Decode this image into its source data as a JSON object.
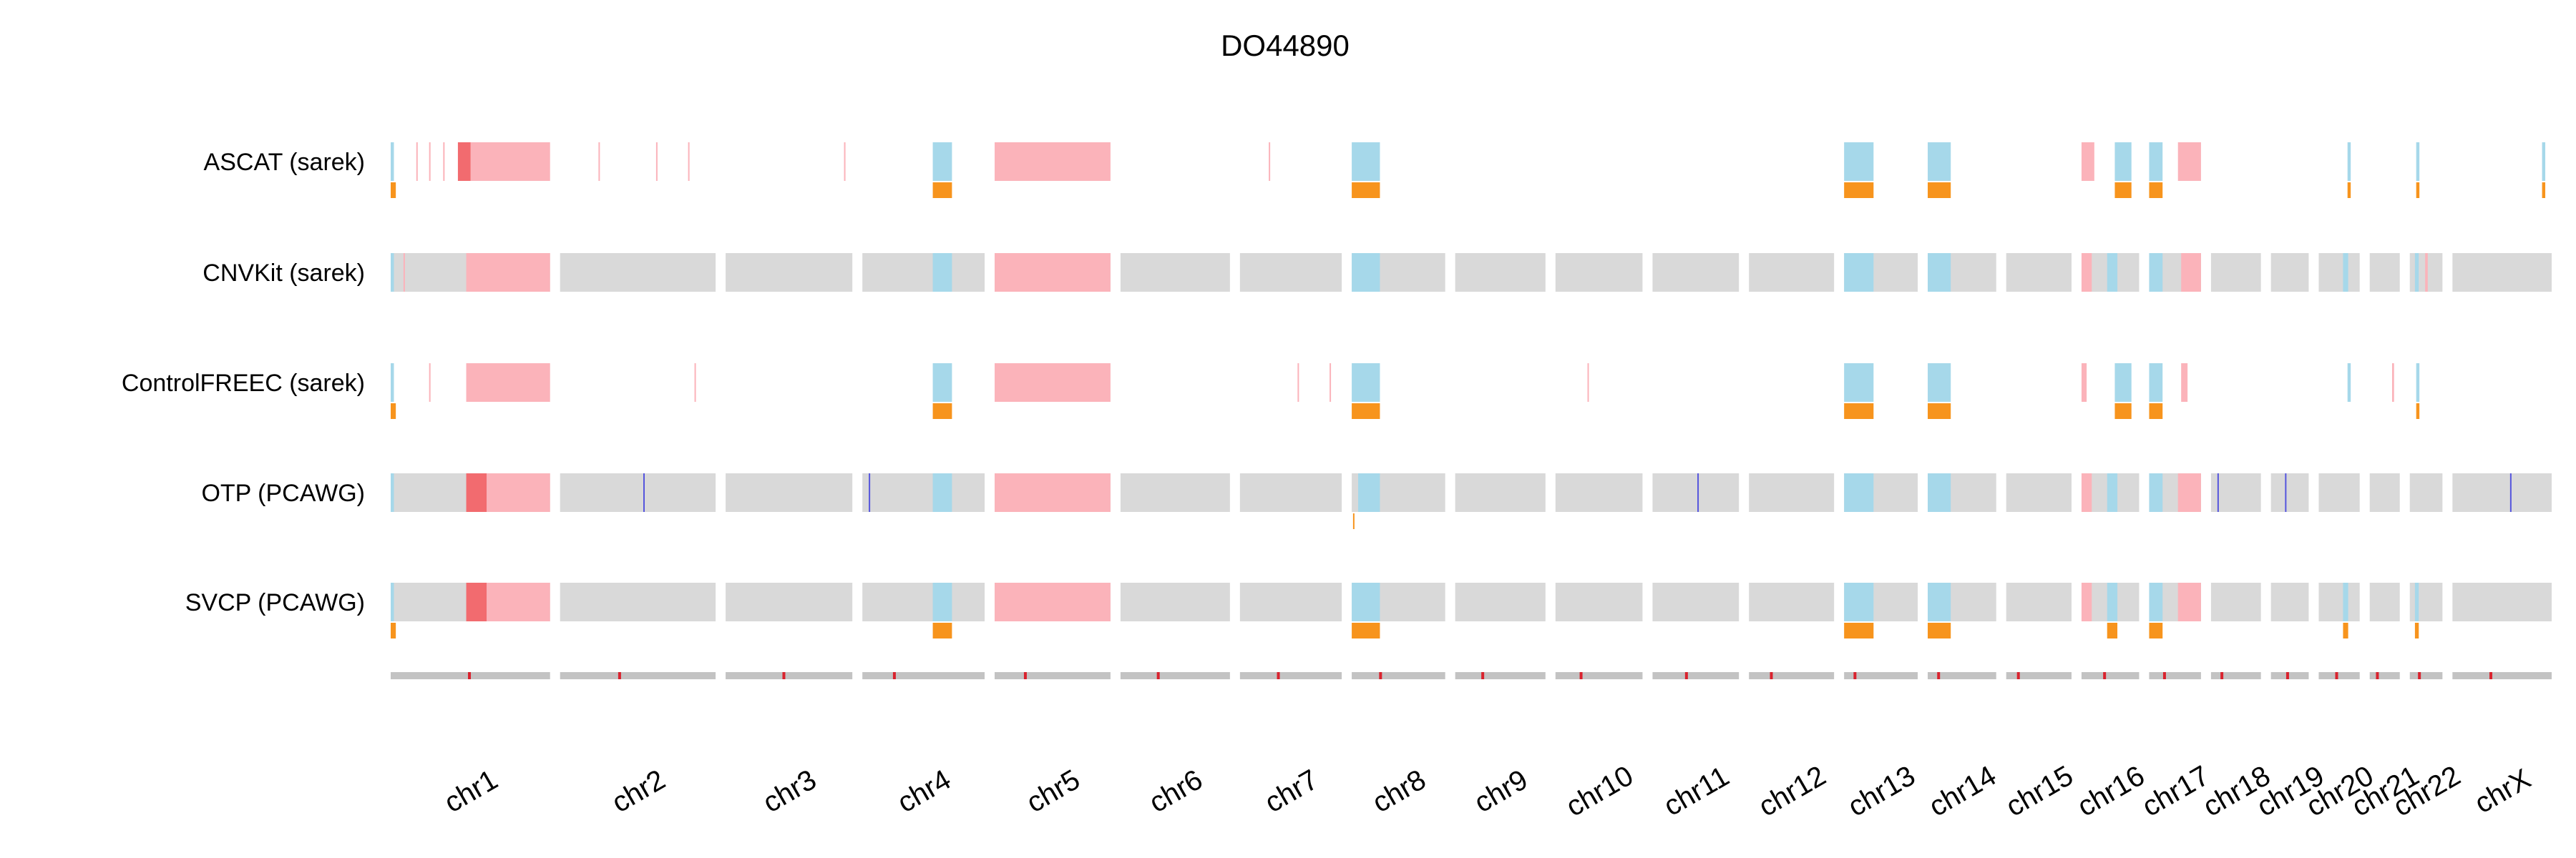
{
  "chart_data": {
    "type": "heatmap",
    "title": "DO44890",
    "tracks": [
      "ASCAT (sarek)",
      "CNVKit (sarek)",
      "ControlFREEC (sarek)",
      "OTP (PCAWG)",
      "SVCP (PCAWG)"
    ],
    "chromosomes": [
      {
        "name": "chr1",
        "length": 249
      },
      {
        "name": "chr2",
        "length": 243
      },
      {
        "name": "chr3",
        "length": 198
      },
      {
        "name": "chr4",
        "length": 191
      },
      {
        "name": "chr5",
        "length": 181
      },
      {
        "name": "chr6",
        "length": 171
      },
      {
        "name": "chr7",
        "length": 159
      },
      {
        "name": "chr8",
        "length": 146
      },
      {
        "name": "chr9",
        "length": 141
      },
      {
        "name": "chr10",
        "length": 136
      },
      {
        "name": "chr11",
        "length": 135
      },
      {
        "name": "chr12",
        "length": 133
      },
      {
        "name": "chr13",
        "length": 115
      },
      {
        "name": "chr14",
        "length": 107
      },
      {
        "name": "chr15",
        "length": 102
      },
      {
        "name": "chr16",
        "length": 90
      },
      {
        "name": "chr17",
        "length": 81
      },
      {
        "name": "chr18",
        "length": 78
      },
      {
        "name": "chr19",
        "length": 59
      },
      {
        "name": "chr20",
        "length": 64
      },
      {
        "name": "chr21",
        "length": 47
      },
      {
        "name": "chr22",
        "length": 51
      },
      {
        "name": "chrX",
        "length": 155
      }
    ],
    "legend_semantics": {
      "pink": "copy-number gain",
      "red": "high-level gain",
      "light-blue": "copy-number loss",
      "orange": "loss of heterozygosity",
      "grey": "neutral",
      "blue": "segment marker"
    },
    "colors": {
      "neutral": "#d9d9d9",
      "gain": "#fbb3ba",
      "high_gain": "#f26b6f",
      "loss": "#a6d8ea",
      "loh": "#f7941d",
      "marker_blue": "#5555dd",
      "ideogram": "#c3c3c3",
      "centromere": "#d9232e"
    },
    "segments": {
      "ASCAT (sarek)": {
        "bg": false,
        "calls": [
          [
            "chr1",
            0,
            5,
            "loss"
          ],
          [
            "chr1",
            105,
            125,
            "high_gain"
          ],
          [
            "chr1",
            125,
            249,
            "gain"
          ],
          [
            "chr1",
            40,
            41,
            "gain"
          ],
          [
            "chr1",
            60,
            61,
            "gain"
          ],
          [
            "chr1",
            82,
            83,
            "gain"
          ],
          [
            "chr2",
            60,
            61,
            "gain"
          ],
          [
            "chr2",
            150,
            151,
            "gain"
          ],
          [
            "chr2",
            200,
            201,
            "gain"
          ],
          [
            "chr3",
            185,
            186,
            "gain"
          ],
          [
            "chr4",
            110,
            140,
            "loss"
          ],
          [
            "chr5",
            0,
            181,
            "gain"
          ],
          [
            "chr7",
            45,
            46,
            "gain"
          ],
          [
            "chr8",
            0,
            44,
            "loss"
          ],
          [
            "chr13",
            0,
            46,
            "loss"
          ],
          [
            "chr14",
            0,
            36,
            "loss"
          ],
          [
            "chr16",
            0,
            20,
            "gain"
          ],
          [
            "chr16",
            52,
            78,
            "loss"
          ],
          [
            "chr17",
            0,
            21,
            "loss"
          ],
          [
            "chr17",
            45,
            81,
            "gain"
          ],
          [
            "chr20",
            45,
            50,
            "loss"
          ],
          [
            "chr22",
            10,
            15,
            "loss"
          ],
          [
            "chrX",
            140,
            145,
            "loss"
          ]
        ],
        "loh": [
          [
            "chr1",
            0,
            8
          ],
          [
            "chr4",
            110,
            140
          ],
          [
            "chr8",
            0,
            44
          ],
          [
            "chr13",
            0,
            46
          ],
          [
            "chr14",
            0,
            36
          ],
          [
            "chr16",
            52,
            78
          ],
          [
            "chr17",
            0,
            21
          ],
          [
            "chr20",
            45,
            50
          ],
          [
            "chr22",
            10,
            15
          ],
          [
            "chrX",
            140,
            145
          ]
        ]
      },
      "CNVKit (sarek)": {
        "bg": true,
        "calls": [
          [
            "chr1",
            0,
            5,
            "loss"
          ],
          [
            "chr1",
            20,
            21,
            "gain"
          ],
          [
            "chr1",
            118,
            249,
            "gain"
          ],
          [
            "chr4",
            110,
            140,
            "loss"
          ],
          [
            "chr5",
            0,
            181,
            "gain"
          ],
          [
            "chr8",
            0,
            44,
            "loss"
          ],
          [
            "chr13",
            0,
            46,
            "loss"
          ],
          [
            "chr14",
            0,
            36,
            "loss"
          ],
          [
            "chr16",
            0,
            16,
            "gain"
          ],
          [
            "chr16",
            40,
            56,
            "loss"
          ],
          [
            "chr17",
            0,
            21,
            "loss"
          ],
          [
            "chr17",
            50,
            81,
            "gain"
          ],
          [
            "chr20",
            38,
            46,
            "loss"
          ],
          [
            "chr22",
            8,
            14,
            "loss"
          ],
          [
            "chr22",
            24,
            28,
            "gain"
          ]
        ],
        "loh": []
      },
      "ControlFREEC (sarek)": {
        "bg": false,
        "calls": [
          [
            "chr1",
            0,
            5,
            "loss"
          ],
          [
            "chr1",
            118,
            249,
            "gain"
          ],
          [
            "chr1",
            60,
            61,
            "gain"
          ],
          [
            "chr2",
            210,
            211,
            "gain"
          ],
          [
            "chr4",
            110,
            140,
            "loss"
          ],
          [
            "chr5",
            0,
            181,
            "gain"
          ],
          [
            "chr7",
            90,
            91,
            "gain"
          ],
          [
            "chr7",
            140,
            141,
            "gain"
          ],
          [
            "chr8",
            0,
            44,
            "loss"
          ],
          [
            "chr10",
            50,
            51,
            "gain"
          ],
          [
            "chr13",
            0,
            46,
            "loss"
          ],
          [
            "chr14",
            0,
            36,
            "loss"
          ],
          [
            "chr16",
            0,
            8,
            "gain"
          ],
          [
            "chr16",
            52,
            78,
            "loss"
          ],
          [
            "chr17",
            0,
            21,
            "loss"
          ],
          [
            "chr17",
            50,
            60,
            "gain"
          ],
          [
            "chr20",
            45,
            50,
            "loss"
          ],
          [
            "chr21",
            35,
            38,
            "gain"
          ],
          [
            "chr22",
            10,
            15,
            "loss"
          ]
        ],
        "loh": [
          [
            "chr1",
            0,
            8
          ],
          [
            "chr4",
            110,
            140
          ],
          [
            "chr8",
            0,
            44
          ],
          [
            "chr13",
            0,
            46
          ],
          [
            "chr14",
            0,
            36
          ],
          [
            "chr16",
            52,
            78
          ],
          [
            "chr17",
            0,
            21
          ],
          [
            "chr22",
            10,
            15
          ]
        ]
      },
      "OTP (PCAWG)": {
        "bg": true,
        "calls": [
          [
            "chr1",
            0,
            5,
            "loss"
          ],
          [
            "chr1",
            118,
            150,
            "high_gain"
          ],
          [
            "chr1",
            150,
            249,
            "gain"
          ],
          [
            "chr2",
            130,
            131,
            "marker_blue"
          ],
          [
            "chr4",
            10,
            11,
            "marker_blue"
          ],
          [
            "chr4",
            110,
            140,
            "loss"
          ],
          [
            "chr5",
            0,
            181,
            "gain"
          ],
          [
            "chr8",
            10,
            44,
            "loss"
          ],
          [
            "chr11",
            70,
            71,
            "marker_blue"
          ],
          [
            "chr13",
            0,
            46,
            "loss"
          ],
          [
            "chr14",
            0,
            36,
            "loss"
          ],
          [
            "chr16",
            0,
            16,
            "gain"
          ],
          [
            "chr16",
            40,
            56,
            "loss"
          ],
          [
            "chr17",
            0,
            21,
            "loss"
          ],
          [
            "chr17",
            45,
            81,
            "gain"
          ],
          [
            "chr18",
            10,
            11,
            "marker_blue"
          ],
          [
            "chr19",
            22,
            23,
            "marker_blue"
          ],
          [
            "chrX",
            90,
            91,
            "marker_blue"
          ]
        ],
        "loh": [
          [
            "chr8",
            2,
            4
          ]
        ]
      },
      "SVCP (PCAWG)": {
        "bg": true,
        "calls": [
          [
            "chr1",
            0,
            5,
            "loss"
          ],
          [
            "chr1",
            118,
            150,
            "high_gain"
          ],
          [
            "chr1",
            150,
            249,
            "gain"
          ],
          [
            "chr4",
            110,
            140,
            "loss"
          ],
          [
            "chr5",
            0,
            181,
            "gain"
          ],
          [
            "chr8",
            0,
            44,
            "loss"
          ],
          [
            "chr13",
            0,
            46,
            "loss"
          ],
          [
            "chr14",
            0,
            36,
            "loss"
          ],
          [
            "chr16",
            0,
            16,
            "gain"
          ],
          [
            "chr16",
            40,
            56,
            "loss"
          ],
          [
            "chr17",
            0,
            21,
            "loss"
          ],
          [
            "chr17",
            45,
            81,
            "gain"
          ],
          [
            "chr20",
            38,
            46,
            "loss"
          ],
          [
            "chr22",
            8,
            14,
            "loss"
          ]
        ],
        "loh": [
          [
            "chr1",
            0,
            8
          ],
          [
            "chr4",
            110,
            140
          ],
          [
            "chr8",
            0,
            44
          ],
          [
            "chr13",
            0,
            46
          ],
          [
            "chr14",
            0,
            36
          ],
          [
            "chr16",
            40,
            56
          ],
          [
            "chr17",
            0,
            21
          ],
          [
            "chr20",
            38,
            46
          ],
          [
            "chr22",
            8,
            14
          ]
        ]
      }
    },
    "centromeres": {
      "chr1": 123,
      "chr2": 93,
      "chr3": 91,
      "chr4": 50,
      "chr5": 48,
      "chr6": 59,
      "chr7": 60,
      "chr8": 45,
      "chr9": 43,
      "chr10": 40,
      "chr11": 53,
      "chr12": 35,
      "chr13": 17,
      "chr14": 17,
      "chr15": 19,
      "chr16": 36,
      "chr17": 24,
      "chr18": 17,
      "chr19": 26,
      "chr20": 28,
      "chr21": 12,
      "chr22": 15,
      "chrX": 60
    }
  }
}
